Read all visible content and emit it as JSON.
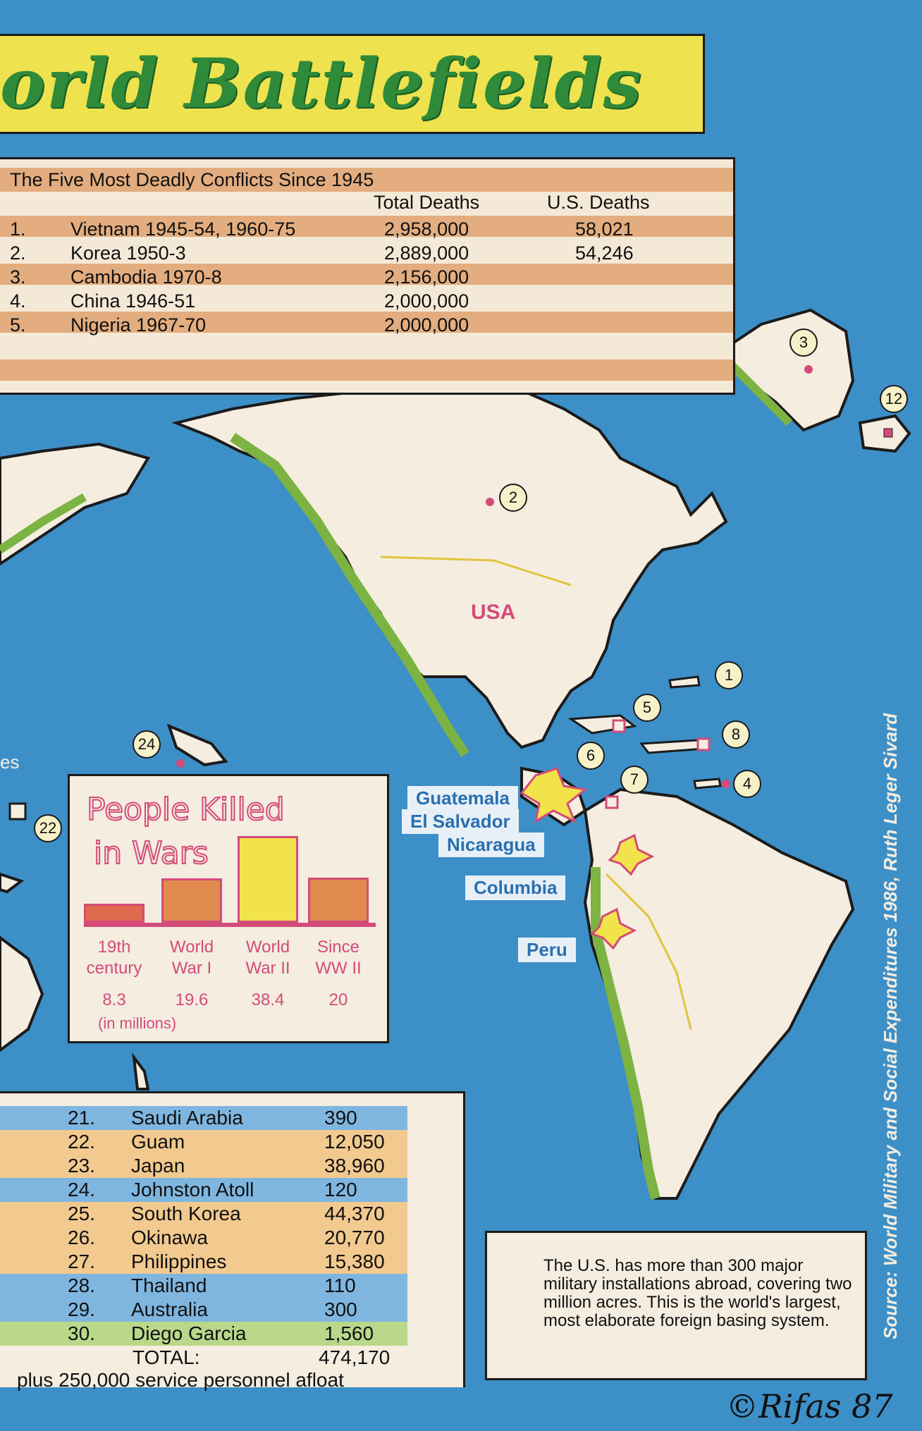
{
  "title": "orld Battlefields",
  "deadly_conflicts": {
    "heading": "The Five Most Deadly Conflicts Since 1945",
    "col_total": "Total Deaths",
    "col_us": "U.S. Deaths",
    "rows": [
      {
        "rank": "1.",
        "name": "Vietnam 1945-54, 1960-75",
        "total": "2,958,000",
        "us": "58,021"
      },
      {
        "rank": "2.",
        "name": "Korea 1950-3",
        "total": "2,889,000",
        "us": "54,246"
      },
      {
        "rank": "3.",
        "name": "Cambodia 1970-8",
        "total": "2,156,000",
        "us": ""
      },
      {
        "rank": "4.",
        "name": "China 1946-51",
        "total": "2,000,000",
        "us": ""
      },
      {
        "rank": "5.",
        "name": "Nigeria 1967-70",
        "total": "2,000,000",
        "us": ""
      }
    ]
  },
  "people_killed": {
    "title_line1": "People Killed",
    "title_line2": "in Wars",
    "unit": "(in millions)",
    "bars": [
      {
        "label1": "19th",
        "label2": "century",
        "value": "8.3",
        "color": "#e06a4e"
      },
      {
        "label1": "World",
        "label2": "War I",
        "value": "19.6",
        "color": "#e08a4e"
      },
      {
        "label1": "World",
        "label2": "War II",
        "value": "38.4",
        "color": "#f3e34a"
      },
      {
        "label1": "Since",
        "label2": "WW II",
        "value": "20",
        "color": "#e08a4e"
      }
    ]
  },
  "bases": {
    "rows": [
      {
        "rank": "21.",
        "name": "Saudi Arabia",
        "count": "390",
        "color": "#7fb6e0"
      },
      {
        "rank": "22.",
        "name": "Guam",
        "count": "12,050",
        "color": "#f2c98e"
      },
      {
        "rank": "23.",
        "name": "Japan",
        "count": "38,960",
        "color": "#f2c98e"
      },
      {
        "rank": "24.",
        "name": "Johnston Atoll",
        "count": "120",
        "color": "#7fb6e0"
      },
      {
        "rank": "25.",
        "name": "South Korea",
        "count": "44,370",
        "color": "#f2c98e"
      },
      {
        "rank": "26.",
        "name": "Okinawa",
        "count": "20,770",
        "color": "#f2c98e"
      },
      {
        "rank": "27.",
        "name": "Philippines",
        "count": "15,380",
        "color": "#f2c98e"
      },
      {
        "rank": "28.",
        "name": "Thailand",
        "count": "110",
        "color": "#7fb6e0"
      },
      {
        "rank": "29.",
        "name": "Australia",
        "count": "300",
        "color": "#7fb6e0"
      },
      {
        "rank": "30.",
        "name": "Diego Garcia",
        "count": "1,560",
        "color": "#b9d88a"
      }
    ],
    "total_label": "TOTAL:",
    "total_value": "474,170",
    "afloat_note": "plus 250,000 service personnel  afloat"
  },
  "info_text": "The U.S. has more than 300 major military installations abroad, covering two million acres. This is the world's largest, most elaborate foreign basing system.",
  "source": "Source: World Military and Social Expenditures 1986, Ruth Leger Sivard",
  "map": {
    "usa_label": "USA",
    "label_guatemala": "Guatemala",
    "label_el_salvador": "El Salvador",
    "label_nicaragua": "Nicaragua",
    "label_columbia": "Columbia",
    "label_peru": "Peru",
    "label_es": "es",
    "markers": [
      "1",
      "2",
      "3",
      "4",
      "5",
      "6",
      "7",
      "8",
      "12",
      "22",
      "24"
    ]
  },
  "signature": "©Rifas 87",
  "colors": {
    "ocean": "#3d8fc7",
    "land": "#f4ede0",
    "coast": "#7cb342",
    "title_green": "#2f8a3a",
    "banner_yellow": "#eee34e",
    "conflict_pink": "#d44b7a"
  }
}
